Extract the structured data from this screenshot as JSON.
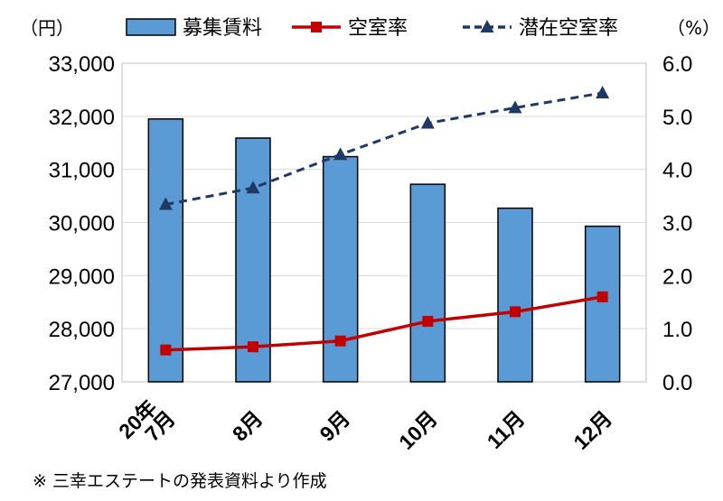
{
  "chart_data": {
    "type": "bar",
    "categories": [
      "7月",
      "8月",
      "9月",
      "10月",
      "11月",
      "12月"
    ],
    "year_label": "20年",
    "left_unit": "（円）",
    "right_unit": "（%）",
    "left_axis": {
      "min": 27000,
      "max": 33000,
      "step": 1000,
      "ticks": [
        "27,000",
        "28,000",
        "29,000",
        "30,000",
        "31,000",
        "32,000",
        "33,000"
      ]
    },
    "right_axis": {
      "min": 0,
      "max": 6,
      "step": 1,
      "ticks": [
        "0.0",
        "1.0",
        "2.0",
        "3.0",
        "4.0",
        "5.0",
        "6.0"
      ]
    },
    "grid": true,
    "legend_position": "top",
    "series": [
      {
        "name": "募集賃料",
        "type": "bar",
        "axis": "left",
        "color": "#5b9bd5",
        "values": [
          31950,
          31590,
          31240,
          30720,
          30270,
          29930
        ]
      },
      {
        "name": "空室率",
        "type": "line",
        "axis": "right",
        "color": "#c00000",
        "marker": "square",
        "values": [
          0.6,
          0.66,
          0.77,
          1.14,
          1.32,
          1.6
        ]
      },
      {
        "name": "潜在空室率",
        "type": "line",
        "axis": "right",
        "color": "#1f3864",
        "marker": "triangle",
        "dashed": true,
        "values": [
          3.34,
          3.65,
          4.28,
          4.87,
          5.16,
          5.44
        ]
      }
    ]
  },
  "note": "※ 三幸エステートの発表資料より作成"
}
